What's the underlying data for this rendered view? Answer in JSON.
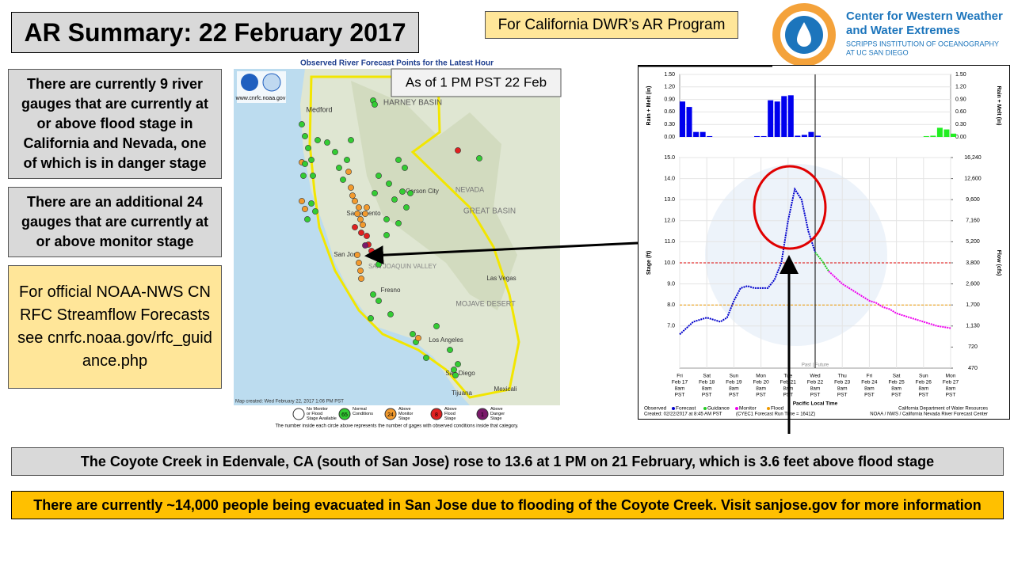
{
  "header": {
    "title": "AR Summary: 22 February 2017",
    "program": "For California DWR’s AR Program"
  },
  "logo": {
    "lines": [
      "Center for Western Weather",
      "and Water Extremes",
      "SCRIPPS INSTITUTION OF OCEANOGRAPHY",
      "AT UC SAN DIEGO"
    ]
  },
  "notes": [
    "There are currently 9 river gauges that are currently at or above flood stage in California and Nevada, one of which is in danger stage",
    "There are an additional  24 gauges that are currently at or above monitor stage",
    "For official NOAA-NWS CNRFC Streamflow Forecasts see cnrfc.noaa.gov/rfc_guidance.php"
  ],
  "map": {
    "title": "Observed River Forecast Points for the Latest Hour",
    "badge": "As of 1 PM PST 22 Feb",
    "url": "www.cnrfc.noaa.gov",
    "created": "Map created: Wed February 22, 2017 1:06 PM PST",
    "places": [
      "HARNEY BASIN",
      "Medford",
      "NEVADA",
      "GREAT BASIN",
      "Carson City",
      "Sacramento",
      "San Jose",
      "Fresno",
      "MOJAVE DESERT",
      "Las Vegas",
      "Los Angeles",
      "San Diego",
      "Tijuana",
      "Mexicali",
      "SAN JOAQUIN VALLEY"
    ],
    "legend": [
      {
        "label": "No Monitor or Flood Stage Available"
      },
      {
        "count": 65,
        "label": "Normal Conditions"
      },
      {
        "count": 24,
        "label": "Above Monitor Stage"
      },
      {
        "count": 8,
        "label": "Above Flood Stage"
      },
      {
        "count": 1,
        "label": "Above Danger Stage"
      }
    ],
    "footnote": "The number inside each circle above represents the number of gages with observed conditions inside that category."
  },
  "hydrograph": {
    "rain_axis_label": "Rain + Melt (in)",
    "stage_axis_label": "Stage (ft)",
    "flow_axis_label": "Flow (cfs)",
    "rain_ylim": [
      0,
      1.5
    ],
    "rain_ticks": [
      {
        "value": 0,
        "label": "0.00"
      },
      {
        "value": 0.3,
        "label": "0.30"
      },
      {
        "value": 0.6,
        "label": "0.60"
      },
      {
        "value": 0.9,
        "label": "0.90"
      },
      {
        "value": 1.2,
        "label": "1.20"
      },
      {
        "value": 1.5,
        "label": "1.50"
      }
    ],
    "stage_ylim": [
      5,
      15
    ],
    "stage_ticks": [
      {
        "value": 7,
        "label": "7.0"
      },
      {
        "value": 8,
        "label": "8.0"
      },
      {
        "value": 9,
        "label": "9.0"
      },
      {
        "value": 10,
        "label": "10.0"
      },
      {
        "value": 11,
        "label": "11.0"
      },
      {
        "value": 12,
        "label": "12.0"
      },
      {
        "value": 13,
        "label": "13.0"
      },
      {
        "value": 14,
        "label": "14.0"
      },
      {
        "value": 15,
        "label": "15.0"
      }
    ],
    "flow_ticks": [
      470,
      720,
      {
        "value": 1130,
        "label": "1,130"
      },
      {
        "value": 1700,
        "label": "1,700"
      },
      {
        "value": 2600,
        "label": "2,600"
      },
      {
        "value": 3800,
        "label": "3,800"
      },
      {
        "value": 5200,
        "label": "5,200"
      },
      {
        "value": 7160,
        "label": "7,160"
      },
      {
        "value": 9600,
        "label": "9,600"
      },
      {
        "value": 12600,
        "label": "12,600"
      },
      {
        "value": 16240,
        "label": "16,240"
      }
    ],
    "days": [
      [
        "Fri",
        "Feb 17",
        "8am",
        "PST"
      ],
      [
        "Sat",
        "Feb 18",
        "8am",
        "PST"
      ],
      [
        "Sun",
        "Feb 19",
        "8am",
        "PST"
      ],
      [
        "Mon",
        "Feb 20",
        "8am",
        "PST"
      ],
      [
        "Tue",
        "Feb 21",
        "8am",
        "PST"
      ],
      [
        "Wed",
        "Feb 22",
        "8am",
        "PST"
      ],
      [
        "Thu",
        "Feb 23",
        "8am",
        "PST"
      ],
      [
        "Fri",
        "Feb 24",
        "8am",
        "PST"
      ],
      [
        "Sat",
        "Feb 25",
        "8am",
        "PST"
      ],
      [
        "Sun",
        "Feb 26",
        "8am",
        "PST"
      ],
      [
        "Mon",
        "Feb 27",
        "8am",
        "PST"
      ]
    ],
    "time_label": "Pacific Local Time",
    "past_future": "Past | Future",
    "series": [
      {
        "color": "#0000cc",
        "values": [
          6.6,
          6.9,
          7.2,
          7.3,
          7.4,
          7.3,
          7.2,
          7.4,
          8.2,
          8.8,
          8.9,
          8.8,
          8.8,
          8.8,
          9.2,
          10.0,
          12.0,
          13.5,
          13.0,
          11.5,
          10.5,
          null,
          null,
          null,
          null,
          null,
          null,
          null,
          null,
          null,
          null,
          null,
          null,
          null,
          null,
          null,
          null,
          null,
          null,
          null,
          null
        ]
      },
      {
        "color": "#22cc22",
        "values": [
          null,
          null,
          null,
          null,
          null,
          null,
          null,
          null,
          null,
          null,
          null,
          null,
          null,
          null,
          null,
          null,
          null,
          null,
          null,
          null,
          10.5,
          10.1,
          9.6,
          null,
          null,
          null,
          null,
          null,
          null,
          null,
          null,
          null,
          null,
          null,
          null,
          null,
          null,
          null,
          null,
          null,
          null
        ]
      },
      {
        "color": "#ee00ee",
        "values": [
          null,
          null,
          null,
          null,
          null,
          null,
          null,
          null,
          null,
          null,
          null,
          null,
          null,
          null,
          null,
          null,
          null,
          null,
          null,
          null,
          null,
          null,
          9.6,
          9.3,
          9.0,
          8.8,
          8.6,
          8.4,
          8.2,
          8.1,
          7.9,
          7.8,
          7.6,
          7.5,
          7.4,
          7.3,
          7.2,
          7.1,
          7.0,
          6.95,
          6.9
        ]
      }
    ],
    "rain_series": [
      {
        "color": "#0000ee",
        "values": [
          0.85,
          0.72,
          0.12,
          0.12,
          0.02,
          0,
          0,
          0,
          0,
          0,
          0,
          0.02,
          0.02,
          0.88,
          0.85,
          0.98,
          1.0,
          0.03,
          0.05,
          0.12,
          0.03,
          null,
          null,
          null,
          null,
          null,
          null,
          null,
          null,
          null,
          null,
          null,
          null,
          null,
          null,
          null,
          null,
          null,
          null,
          null,
          null
        ]
      },
      {
        "color": "#22ee22",
        "values": [
          null,
          null,
          null,
          null,
          null,
          null,
          null,
          null,
          null,
          null,
          null,
          null,
          null,
          null,
          null,
          null,
          null,
          null,
          null,
          null,
          null,
          0,
          0,
          0,
          0,
          0,
          0,
          0,
          0,
          0,
          0,
          0,
          0,
          0,
          0,
          0,
          0.02,
          0.03,
          0.22,
          0.18,
          0.08
        ]
      }
    ],
    "flood_stage": 10,
    "flood_color": "#dd0000",
    "monitor_stage": 8,
    "monitor_color": "#ee9900",
    "legend": [
      "Observed",
      "Forecast",
      "Guidance",
      "Monitor",
      "Flood"
    ],
    "created": "Created: 02/22/2017 at 8:45 AM PST",
    "run_time": "(CYEC1 Forecast Run Time = 1641Z)",
    "credit1": "California Department of Water Resources",
    "credit2": "NOAA / NWS / California Nevada River Forecast Center"
  },
  "footer": [
    "The Coyote Creek in Edenvale, CA (south of San Jose) rose to 13.6 at 1 PM on 21 February, which is 3.6 feet above flood stage",
    "There are currently ~14,000 people being evacuated in San Jose due to flooding of the Coyote Creek. Visit sanjose.gov for more information"
  ]
}
